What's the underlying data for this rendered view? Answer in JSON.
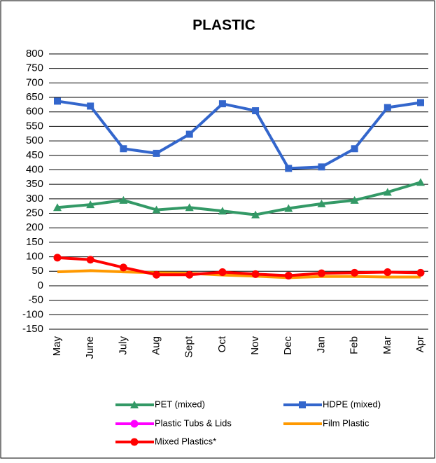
{
  "chart_data": {
    "type": "line",
    "title": "PLASTIC",
    "categories": [
      "May",
      "June",
      "July",
      "Aug",
      "Sept",
      "Oct",
      "Nov",
      "Dec",
      "Jan",
      "Feb",
      "Mar",
      "Apr"
    ],
    "series": [
      {
        "name": "PET (mixed)",
        "color": "#339966",
        "marker": "triangle",
        "values": [
          270,
          280,
          295,
          262,
          270,
          258,
          245,
          267,
          283,
          295,
          323,
          357
        ]
      },
      {
        "name": "HDPE (mixed)",
        "color": "#3366cc",
        "marker": "square",
        "values": [
          637,
          620,
          473,
          457,
          523,
          628,
          604,
          405,
          410,
          473,
          615,
          632
        ]
      },
      {
        "name": "Plastic Tubs & Lids",
        "color": "#ff00ff",
        "marker": "circle",
        "values": [
          null,
          null,
          null,
          null,
          null,
          null,
          null,
          null,
          null,
          null,
          null,
          null
        ]
      },
      {
        "name": "Film Plastic",
        "color": "#ff9900",
        "marker": "none",
        "values": [
          48,
          52,
          48,
          45,
          43,
          37,
          33,
          28,
          32,
          32,
          30,
          30
        ]
      },
      {
        "name": "Mixed Plastics*",
        "color": "#ff0000",
        "marker": "circle",
        "values": [
          97,
          90,
          63,
          38,
          38,
          47,
          40,
          35,
          43,
          45,
          47,
          45
        ]
      }
    ],
    "ylim": [
      -150,
      800
    ],
    "yticks": [
      -150,
      -100,
      -50,
      0,
      50,
      100,
      150,
      200,
      250,
      300,
      350,
      400,
      450,
      500,
      550,
      600,
      650,
      700,
      750,
      800
    ],
    "grid": true
  }
}
